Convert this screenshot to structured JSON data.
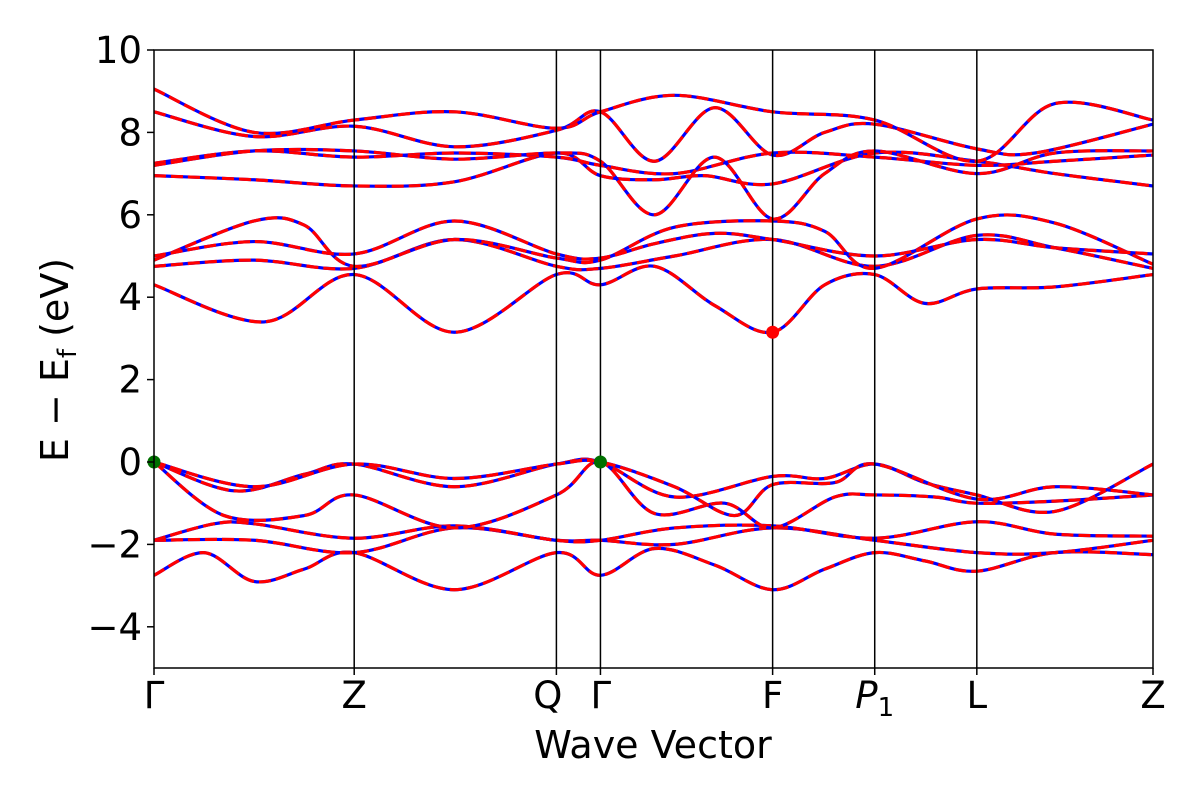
{
  "chart_data": {
    "type": "line",
    "xlabel": "Wave Vector",
    "ylabel": "E − E_f (eV)",
    "ylim": [
      -5,
      10
    ],
    "yticks": [
      -4,
      -2,
      0,
      2,
      4,
      6,
      8,
      10
    ],
    "ytick_labels": [
      "−4",
      "−2",
      "0",
      "2",
      "4",
      "6",
      "8",
      "10"
    ],
    "grid": false,
    "kpath": {
      "labels": [
        "Γ",
        "Z",
        "Q",
        "Γ",
        "F",
        "P₁",
        "L",
        "Z"
      ],
      "positions": [
        0.0,
        1.0,
        2.01,
        2.23,
        3.09,
        3.6,
        4.11,
        4.99
      ],
      "xlim": [
        0.0,
        4.99
      ]
    },
    "style": {
      "dft_color": "#0000ff",
      "interp_color": "#ff0000",
      "vbm_color": "#007000",
      "cbm_color": "#ff0000"
    },
    "markers": [
      {
        "name": "VBM",
        "x": 0.0,
        "y": 0.0
      },
      {
        "name": "VBM",
        "x": 2.23,
        "y": 0.0
      },
      {
        "name": "CBM",
        "x": 3.09,
        "y": 3.15
      }
    ],
    "bands": [
      {
        "x": [
          0.0,
          0.25,
          0.5,
          0.75,
          1.0,
          1.5,
          2.01,
          2.23,
          2.5,
          2.8,
          3.09,
          3.35,
          3.6,
          3.85,
          4.11,
          4.5,
          4.99
        ],
        "y": [
          -2.75,
          -2.2,
          -2.9,
          -2.6,
          -2.2,
          -3.1,
          -2.2,
          -2.75,
          -2.1,
          -2.5,
          -3.1,
          -2.6,
          -2.2,
          -2.4,
          -2.65,
          -2.2,
          -2.25
        ]
      },
      {
        "x": [
          0.0,
          0.5,
          1.0,
          1.5,
          2.01,
          2.23,
          2.6,
          3.09,
          3.6,
          4.11,
          4.5,
          4.99
        ],
        "y": [
          -1.9,
          -1.9,
          -2.2,
          -1.6,
          -1.9,
          -1.9,
          -2.0,
          -1.6,
          -1.9,
          -2.2,
          -2.2,
          -1.9
        ]
      },
      {
        "x": [
          0.0,
          0.3,
          0.5,
          1.0,
          1.5,
          2.01,
          2.23,
          2.6,
          3.09,
          3.6,
          4.11,
          4.5,
          4.99
        ],
        "y": [
          -1.9,
          -1.5,
          -1.5,
          -1.85,
          -1.55,
          -1.9,
          -1.9,
          -1.6,
          -1.55,
          -1.85,
          -1.45,
          -1.75,
          -1.8
        ]
      },
      {
        "x": [
          0.0,
          0.35,
          0.75,
          1.0,
          1.5,
          2.01,
          2.23,
          2.5,
          2.85,
          3.09,
          3.4,
          3.6,
          3.9,
          4.11,
          4.5,
          4.99
        ],
        "y": [
          0.0,
          -1.3,
          -1.3,
          -0.8,
          -1.6,
          -0.8,
          0.0,
          -1.25,
          -1.0,
          -1.6,
          -0.85,
          -0.8,
          -0.85,
          -1.0,
          -0.95,
          -0.8
        ]
      },
      {
        "x": [
          0.0,
          0.4,
          0.75,
          1.0,
          1.5,
          2.01,
          2.23,
          2.6,
          3.09,
          3.35,
          3.6,
          3.85,
          4.11,
          4.5,
          4.99
        ],
        "y": [
          0.0,
          -0.7,
          -0.3,
          -0.05,
          -0.6,
          -0.05,
          0.0,
          -0.85,
          -0.35,
          -0.4,
          -0.05,
          -0.5,
          -0.8,
          -1.2,
          -0.05
        ]
      },
      {
        "x": [
          0.0,
          0.5,
          1.0,
          1.5,
          2.01,
          2.23,
          2.6,
          2.9,
          3.09,
          3.4,
          3.6,
          4.11,
          4.5,
          4.99
        ],
        "y": [
          0.0,
          -0.6,
          -0.05,
          -0.4,
          -0.05,
          0.0,
          -0.6,
          -1.3,
          -0.55,
          -0.5,
          -0.05,
          -0.9,
          -0.6,
          -0.8
        ]
      },
      {
        "x": [
          0.0,
          0.55,
          1.0,
          1.5,
          2.01,
          2.23,
          2.5,
          2.8,
          3.09,
          3.35,
          3.6,
          3.85,
          4.11,
          4.5,
          4.99
        ],
        "y": [
          4.3,
          3.4,
          4.55,
          3.15,
          4.55,
          4.3,
          4.75,
          3.8,
          3.15,
          4.3,
          4.55,
          3.85,
          4.2,
          4.25,
          4.55
        ]
      },
      {
        "x": [
          0.0,
          0.5,
          1.0,
          1.5,
          2.01,
          2.23,
          2.6,
          3.09,
          3.6,
          4.11,
          4.5,
          4.99
        ],
        "y": [
          4.75,
          4.9,
          4.7,
          5.4,
          4.75,
          4.7,
          5.0,
          5.4,
          4.75,
          5.5,
          5.2,
          4.7
        ]
      },
      {
        "x": [
          0.0,
          0.5,
          0.75,
          1.0,
          1.5,
          2.01,
          2.23,
          2.6,
          3.09,
          3.35,
          3.6,
          4.11,
          4.5,
          4.99
        ],
        "y": [
          4.9,
          5.85,
          5.75,
          4.75,
          5.4,
          4.95,
          4.9,
          5.7,
          5.85,
          5.6,
          4.7,
          5.9,
          5.8,
          4.8
        ]
      },
      {
        "x": [
          0.0,
          0.5,
          1.0,
          1.5,
          2.01,
          2.23,
          2.5,
          2.8,
          3.09,
          3.6,
          4.11,
          4.5,
          4.99
        ],
        "y": [
          5.0,
          5.35,
          5.05,
          5.85,
          5.05,
          4.95,
          5.3,
          5.55,
          5.4,
          5.0,
          5.4,
          5.2,
          5.05
        ]
      },
      {
        "x": [
          0.0,
          0.5,
          1.0,
          1.5,
          2.01,
          2.23,
          2.5,
          2.75,
          3.09,
          3.6,
          4.11,
          4.5,
          4.99
        ],
        "y": [
          6.95,
          6.85,
          6.7,
          6.8,
          7.5,
          6.95,
          6.85,
          6.95,
          6.75,
          7.5,
          7.3,
          7.0,
          6.7
        ]
      },
      {
        "x": [
          0.0,
          0.5,
          1.0,
          1.5,
          2.01,
          2.23,
          2.6,
          3.09,
          3.6,
          4.11,
          4.5,
          4.99
        ],
        "y": [
          7.25,
          7.55,
          7.4,
          7.5,
          7.4,
          7.2,
          7.0,
          7.5,
          7.4,
          7.2,
          7.3,
          7.45
        ]
      },
      {
        "x": [
          0.0,
          0.5,
          1.0,
          1.5,
          2.01,
          2.23,
          2.5,
          2.8,
          3.09,
          3.35,
          3.6,
          4.11,
          4.5,
          4.99
        ],
        "y": [
          7.2,
          7.55,
          7.55,
          7.35,
          7.5,
          7.3,
          6.0,
          7.4,
          5.9,
          7.0,
          7.55,
          7.0,
          7.5,
          7.55
        ]
      },
      {
        "x": [
          0.0,
          0.5,
          1.0,
          1.5,
          2.01,
          2.23,
          2.5,
          2.8,
          3.09,
          3.35,
          3.6,
          4.11,
          4.4,
          4.99
        ],
        "y": [
          8.5,
          7.9,
          8.15,
          7.65,
          8.05,
          8.5,
          7.3,
          8.6,
          7.45,
          8.0,
          8.2,
          7.6,
          7.5,
          8.2
        ]
      },
      {
        "x": [
          0.0,
          0.5,
          1.0,
          1.5,
          2.01,
          2.23,
          2.6,
          3.09,
          3.6,
          4.11,
          4.5,
          4.99
        ],
        "y": [
          9.05,
          8.0,
          8.3,
          8.5,
          8.1,
          8.5,
          8.9,
          8.5,
          8.3,
          7.3,
          8.7,
          8.3
        ]
      }
    ]
  }
}
